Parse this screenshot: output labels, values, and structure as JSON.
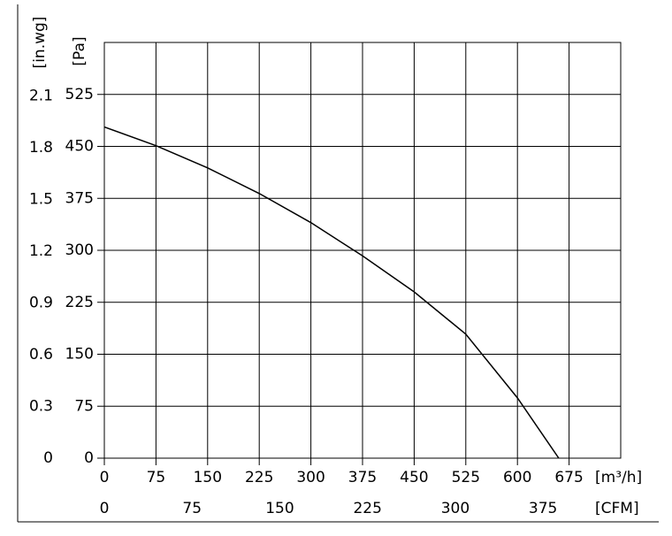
{
  "chart_data": {
    "type": "line",
    "x_label": "[m³/h]",
    "x2_label": "[CFM]",
    "y_label": "[Pa]",
    "y2_label": "[in.wg]",
    "series": [
      {
        "color": "#000000",
        "x": [
          0,
          75,
          150,
          225,
          300,
          375,
          450,
          525,
          600,
          660
        ],
        "values": [
          478,
          451,
          419,
          382,
          340,
          292,
          240,
          179,
          87,
          0
        ]
      }
    ],
    "xlim": [
      0,
      750
    ],
    "xticks": [
      0,
      75,
      150,
      225,
      300,
      375,
      450,
      525,
      600,
      675
    ],
    "x2lim": [
      0,
      441.4
    ],
    "x2ticks": [
      0,
      75,
      150,
      225,
      300,
      375
    ],
    "ylim": [
      0,
      600
    ],
    "yticks": [
      0,
      75,
      150,
      225,
      300,
      375,
      450,
      525
    ],
    "y2lim": [
      0,
      2.409
    ],
    "y2ticks": [
      0,
      0.3,
      0.6,
      0.9,
      1.2,
      1.5,
      1.8,
      2.1
    ],
    "grid": true
  }
}
